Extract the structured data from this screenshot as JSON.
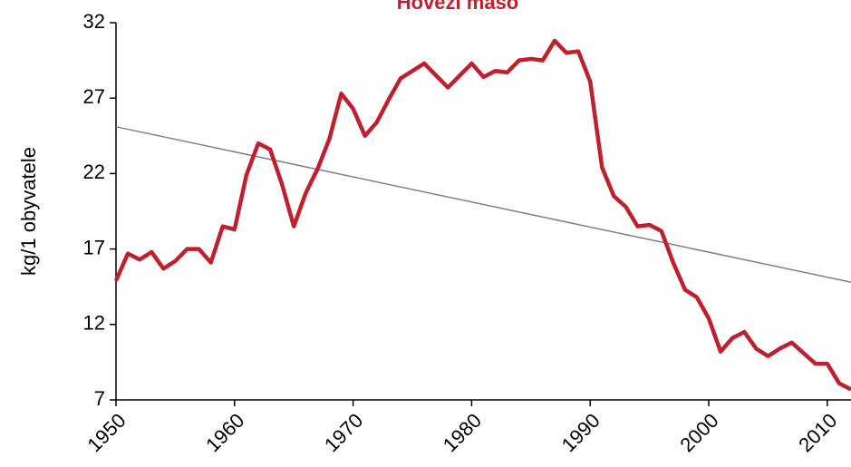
{
  "chart_data": {
    "type": "line",
    "title": "Hovězí maso",
    "y_label": "kg/1 obyvatele",
    "x": [
      1950,
      1951,
      1952,
      1953,
      1954,
      1955,
      1956,
      1957,
      1958,
      1959,
      1960,
      1961,
      1962,
      1963,
      1964,
      1965,
      1966,
      1967,
      1968,
      1969,
      1970,
      1971,
      1972,
      1973,
      1974,
      1975,
      1976,
      1977,
      1978,
      1979,
      1980,
      1981,
      1982,
      1983,
      1984,
      1985,
      1986,
      1987,
      1988,
      1989,
      1990,
      1991,
      1992,
      1993,
      1994,
      1995,
      1996,
      1997,
      1998,
      1999,
      2000,
      2001,
      2002,
      2003,
      2004,
      2005,
      2006,
      2007,
      2008,
      2009,
      2010,
      2011,
      2012
    ],
    "series": [
      {
        "color": "#c0202e",
        "values": [
          14.9,
          16.7,
          16.3,
          16.8,
          15.7,
          16.2,
          17.0,
          17.0,
          16.1,
          18.5,
          18.3,
          21.9,
          24.0,
          23.6,
          21.3,
          18.5,
          20.7,
          22.3,
          24.3,
          27.3,
          26.3,
          24.5,
          25.4,
          26.9,
          28.3,
          28.8,
          29.3,
          28.5,
          27.7,
          28.5,
          29.3,
          28.4,
          28.8,
          28.7,
          29.5,
          29.6,
          29.5,
          30.8,
          30.0,
          30.1,
          28.1,
          22.4,
          20.5,
          19.8,
          18.5,
          18.6,
          18.2,
          16.1,
          14.3,
          13.8,
          12.4,
          10.2,
          11.1,
          11.5,
          10.4,
          9.9,
          10.4,
          10.8,
          10.1,
          9.4,
          9.4,
          8.1,
          7.7
        ]
      }
    ],
    "trendline": {
      "color": "#808080",
      "x": [
        1950,
        2012
      ],
      "values": [
        25.1,
        14.8
      ]
    },
    "xlim": [
      1950,
      2012
    ],
    "xticks": [
      1950,
      1960,
      1970,
      1980,
      1990,
      2000,
      2010
    ],
    "ylim": [
      7,
      32
    ],
    "yticks": [
      7,
      12,
      17,
      22,
      27,
      32
    ]
  }
}
